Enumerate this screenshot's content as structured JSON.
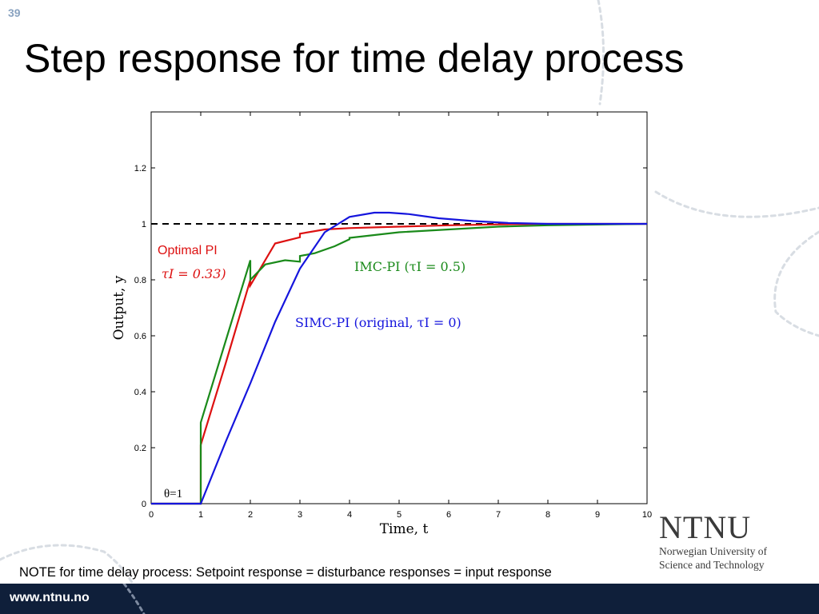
{
  "slide": {
    "number": "39",
    "title": "Step response for time delay process",
    "note": "NOTE for time delay process: Setpoint response = disturbance responses = input response"
  },
  "logo": {
    "wordmark": "NTNU",
    "line1": "Norwegian University of",
    "line2": "Science and Technology"
  },
  "footer": {
    "url": "www.ntnu.no"
  },
  "colors": {
    "footer_bg": "#0f1f3a",
    "red": "#dd1111",
    "green": "#1a8a1a",
    "blue": "#1515dd",
    "setpoint": "#000000"
  },
  "chart_data": {
    "type": "line",
    "title": "",
    "xlabel": "Time, t",
    "ylabel": "Output, y",
    "xlim": [
      0,
      10
    ],
    "ylim": [
      0,
      1.4
    ],
    "xticks": [
      0,
      1,
      2,
      3,
      4,
      5,
      6,
      7,
      8,
      9,
      10
    ],
    "yticks": [
      0,
      0.2,
      0.4,
      0.6,
      0.8,
      1,
      1.2
    ],
    "grid": false,
    "setpoint": {
      "y": 1,
      "style": "dashed"
    },
    "series": [
      {
        "name": "Optimal PI",
        "color": "#dd1111",
        "x": [
          0,
          1,
          1.0,
          1.5,
          2.0,
          2.0,
          2.5,
          3.0,
          3.0,
          3.5,
          4.0,
          5.0,
          6.0,
          7.0,
          8.0,
          10.0
        ],
        "y": [
          0,
          0,
          0.21,
          0.5,
          0.8,
          0.78,
          0.93,
          0.952,
          0.965,
          0.98,
          0.985,
          0.99,
          0.995,
          0.998,
          1.0,
          1.0
        ]
      },
      {
        "name": "IMC-PI",
        "color": "#1a8a1a",
        "x": [
          0,
          1,
          1.0,
          1.5,
          2.0,
          2.0,
          2.3,
          2.7,
          3.0,
          3.0,
          3.3,
          3.7,
          4.0,
          4.0,
          5.0,
          6.0,
          7.0,
          8.0,
          10.0
        ],
        "y": [
          0,
          0,
          0.29,
          0.58,
          0.87,
          0.8,
          0.855,
          0.87,
          0.865,
          0.885,
          0.895,
          0.92,
          0.945,
          0.95,
          0.97,
          0.98,
          0.99,
          0.995,
          1.0
        ]
      },
      {
        "name": "SIMC-PI",
        "color": "#1515dd",
        "x": [
          0,
          1,
          1.5,
          2.0,
          2.5,
          3.0,
          3.5,
          4.0,
          4.5,
          4.8,
          5.2,
          5.8,
          6.5,
          7.2,
          8.0,
          9.0,
          10.0
        ],
        "y": [
          0,
          0,
          0.22,
          0.43,
          0.65,
          0.84,
          0.97,
          1.025,
          1.04,
          1.04,
          1.035,
          1.02,
          1.01,
          1.003,
          1.0,
          1.0,
          1.0
        ]
      }
    ],
    "annotations": [
      {
        "text": "Optimal PI",
        "color": "#dd1111"
      },
      {
        "text": "τI = 0.33)",
        "color": "#dd1111",
        "math": true
      },
      {
        "text": "IMC-PI (τI = 0.5)",
        "color": "#1a8a1a",
        "math": true
      },
      {
        "text": "SIMC-PI (original, τI = 0)",
        "color": "#1515dd",
        "math": true
      },
      {
        "text": "θ=1",
        "color": "#000000"
      }
    ]
  }
}
